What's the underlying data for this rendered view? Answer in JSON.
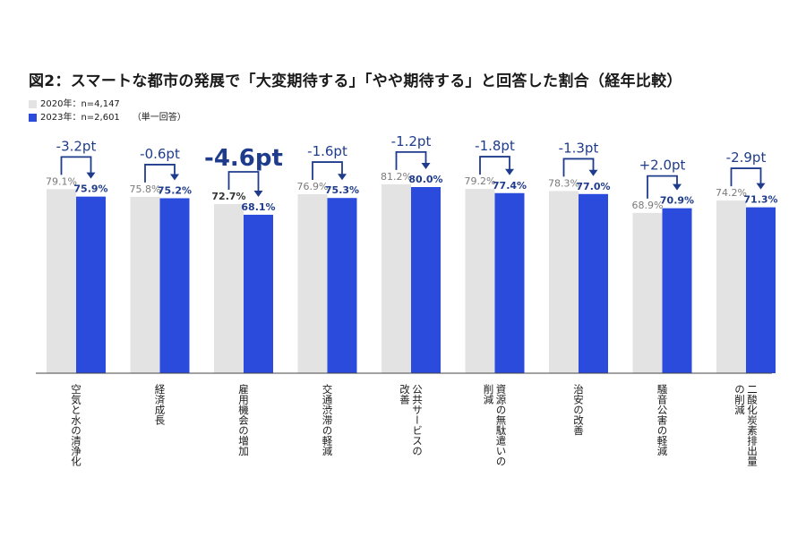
{
  "title": "図2：スマートな都市の発展で「大変期待する」「やや期待する」と回答した割合（経年比較）",
  "legend": {
    "series_2020": "2020年：n=4,147",
    "series_2023": "2023年：n=2,601",
    "note": "（単一回答）"
  },
  "colors": {
    "series_2020": "#e3e3e3",
    "series_2023": "#2a4bdc",
    "arrow": "#1f3c8c",
    "label_2020": "#7a7a7a",
    "label_2023": "#1f3c8c"
  },
  "chart_data": {
    "type": "bar",
    "categories": [
      "空気と水の清浄化",
      "経済成長",
      "雇用機会の増加",
      "交通渋滞の軽減",
      "公共サービスの改善",
      "資源の無駄遣いの削減",
      "治安の改善",
      "騒音公害の軽減",
      "二酸化炭素排出量の削減"
    ],
    "series": [
      {
        "name": "2020年：n=4,147",
        "values": [
          79.1,
          75.8,
          72.7,
          76.9,
          81.2,
          79.2,
          78.3,
          68.9,
          74.2
        ]
      },
      {
        "name": "2023年：n=2,601",
        "values": [
          75.9,
          75.2,
          68.1,
          75.3,
          80.0,
          77.4,
          77.0,
          70.9,
          71.3
        ]
      }
    ],
    "value_labels_2020": [
      "79.1%",
      "75.8%",
      "72.7%",
      "76.9%",
      "81.2%",
      "79.2%",
      "78.3%",
      "68.9%",
      "74.2%"
    ],
    "value_labels_2023": [
      "75.9%",
      "75.2%",
      "68.1%",
      "75.3%",
      "80.0%",
      "77.4%",
      "77.0%",
      "70.9%",
      "71.3%"
    ],
    "changes": [
      "-3.2pt",
      "-0.6pt",
      "-4.6pt",
      "-1.6pt",
      "-1.2pt",
      "-1.8pt",
      "-1.3pt",
      "+2.0pt",
      "-2.9pt"
    ],
    "category_label_lines": [
      [
        "空気と水の清浄化"
      ],
      [
        "経済成長"
      ],
      [
        "雇用機会の増加"
      ],
      [
        "交通渋滞の軽減"
      ],
      [
        "公共サービスの",
        "改善"
      ],
      [
        "資源の無駄遣いの",
        "削減"
      ],
      [
        "治安の改善"
      ],
      [
        "騒音公害の軽減"
      ],
      [
        "二酸化炭素排出量",
        "の削減"
      ]
    ],
    "highlight_index": 2,
    "ylim": [
      0,
      100
    ],
    "grid": false
  }
}
